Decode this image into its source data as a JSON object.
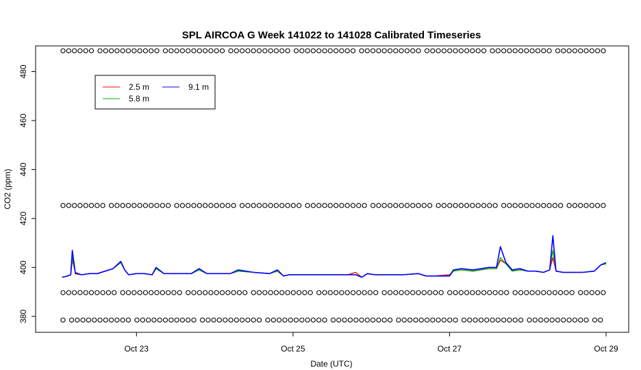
{
  "chart_data": {
    "type": "line",
    "title": "SPL AIRCOA G  Week 141022 to 141028  Calibrated Timeseries",
    "xlabel": "Date (UTC)",
    "ylabel": "CO2 (ppm)",
    "xlim": [
      22.0,
      29.0
    ],
    "ylim": [
      373.5,
      490.5
    ],
    "x_ticks": [
      {
        "value": 23,
        "label": "Oct 23"
      },
      {
        "value": 25,
        "label": "Oct 25"
      },
      {
        "value": 27,
        "label": "Oct 27"
      },
      {
        "value": 29,
        "label": "Oct 29"
      }
    ],
    "y_ticks": [
      380,
      400,
      420,
      440,
      460,
      480
    ],
    "legend": {
      "placement": "top-left",
      "ncol": 2
    },
    "reference_levels": [
      {
        "value": 378.5,
        "marker": "circle"
      },
      {
        "value": 389.7,
        "marker": "circle"
      },
      {
        "value": 425.3,
        "marker": "circle"
      },
      {
        "value": 488.5,
        "marker": "circle"
      }
    ],
    "series": [
      {
        "name": "2.5 m",
        "color": "#ff0000",
        "x": [
          22.05,
          22.12,
          22.16,
          22.18,
          22.22,
          22.3,
          22.4,
          22.5,
          22.6,
          22.7,
          22.8,
          22.85,
          22.9,
          23.0,
          23.1,
          23.2,
          23.25,
          23.35,
          23.5,
          23.7,
          23.8,
          23.9,
          24.0,
          24.2,
          24.3,
          24.5,
          24.7,
          24.8,
          24.88,
          24.95,
          25.1,
          25.3,
          25.5,
          25.7,
          25.8,
          25.88,
          25.95,
          26.05,
          26.2,
          26.4,
          26.6,
          26.7,
          26.8,
          27.0,
          27.05,
          27.15,
          27.3,
          27.5,
          27.6,
          27.65,
          27.72,
          27.8,
          27.9,
          28.0,
          28.1,
          28.2,
          28.28,
          28.32,
          28.36,
          28.45,
          28.55,
          28.7,
          28.85,
          28.93,
          29.0
        ],
        "y": [
          396,
          396.5,
          397,
          403,
          398,
          397,
          397.5,
          397.5,
          398.5,
          399.5,
          402,
          399,
          397,
          397.5,
          397.5,
          397,
          399.5,
          397.5,
          397.5,
          397.5,
          399,
          397.5,
          397.5,
          397.5,
          398.5,
          398,
          397.5,
          398.5,
          396.5,
          397,
          397,
          397,
          397,
          397,
          398,
          396,
          397.5,
          397,
          397,
          397,
          397.5,
          396.5,
          396.5,
          397,
          398.5,
          399,
          398.5,
          399.5,
          399.5,
          403,
          401.5,
          398.5,
          399,
          398.5,
          398.5,
          398,
          399,
          404,
          398.5,
          398,
          398,
          398,
          398.5,
          401,
          401.5
        ]
      },
      {
        "name": "5.8 m",
        "color": "#00b000",
        "x": [
          22.05,
          22.12,
          22.16,
          22.18,
          22.22,
          22.3,
          22.4,
          22.5,
          22.6,
          22.7,
          22.8,
          22.85,
          22.9,
          23.0,
          23.1,
          23.2,
          23.25,
          23.35,
          23.5,
          23.7,
          23.8,
          23.9,
          24.0,
          24.2,
          24.3,
          24.5,
          24.7,
          24.8,
          24.88,
          24.95,
          25.1,
          25.3,
          25.5,
          25.7,
          25.8,
          25.88,
          25.95,
          26.05,
          26.2,
          26.4,
          26.6,
          26.7,
          26.8,
          27.0,
          27.05,
          27.15,
          27.3,
          27.5,
          27.6,
          27.65,
          27.72,
          27.8,
          27.9,
          28.0,
          28.1,
          28.2,
          28.28,
          28.32,
          28.36,
          28.45,
          28.55,
          28.7,
          28.85,
          28.93,
          29.0
        ],
        "y": [
          396,
          396.5,
          397,
          404,
          397.5,
          397,
          397.5,
          397.5,
          398.5,
          399.5,
          402,
          399,
          397,
          397.5,
          397.5,
          397,
          399.5,
          397.5,
          397.5,
          397.5,
          399,
          397.5,
          397.5,
          397.5,
          398.5,
          398,
          397.5,
          398.5,
          396.5,
          397,
          397,
          397,
          397,
          397,
          397,
          396,
          397.5,
          397,
          397,
          397,
          397.5,
          396.5,
          396.5,
          396.5,
          398.5,
          399,
          398.5,
          399.5,
          399.5,
          404,
          401.5,
          398.5,
          399,
          398.5,
          398.5,
          398,
          399,
          407,
          398.5,
          398,
          398,
          398,
          398.5,
          401,
          401.5
        ]
      },
      {
        "name": "9.1 m",
        "color": "#0000ff",
        "x": [
          22.05,
          22.12,
          22.16,
          22.18,
          22.22,
          22.3,
          22.4,
          22.5,
          22.6,
          22.7,
          22.8,
          22.85,
          22.9,
          23.0,
          23.1,
          23.2,
          23.25,
          23.35,
          23.5,
          23.7,
          23.8,
          23.9,
          24.0,
          24.2,
          24.3,
          24.5,
          24.7,
          24.8,
          24.88,
          24.95,
          25.1,
          25.3,
          25.5,
          25.7,
          25.8,
          25.88,
          25.95,
          26.05,
          26.2,
          26.4,
          26.6,
          26.7,
          26.8,
          27.0,
          27.05,
          27.15,
          27.3,
          27.5,
          27.6,
          27.65,
          27.72,
          27.8,
          27.9,
          28.0,
          28.1,
          28.2,
          28.28,
          28.32,
          28.36,
          28.45,
          28.55,
          28.7,
          28.85,
          28.93,
          29.0
        ],
        "y": [
          396,
          396.5,
          397,
          407,
          397.5,
          397,
          397.5,
          397.5,
          398.5,
          399.5,
          402.5,
          399,
          397,
          397.5,
          397.5,
          397,
          400,
          397.5,
          397.5,
          397.5,
          399.5,
          397.5,
          397.5,
          397.5,
          399,
          398,
          397.5,
          399,
          396.5,
          397,
          397,
          397,
          397,
          397,
          397,
          396,
          397.5,
          397,
          397,
          397,
          397.5,
          396.5,
          396.5,
          396.5,
          399,
          399.5,
          399,
          400,
          400,
          408.5,
          402,
          399,
          399.5,
          398.5,
          398.5,
          398,
          399,
          413,
          398.5,
          398,
          398,
          398,
          398.5,
          401,
          402
        ]
      }
    ]
  }
}
